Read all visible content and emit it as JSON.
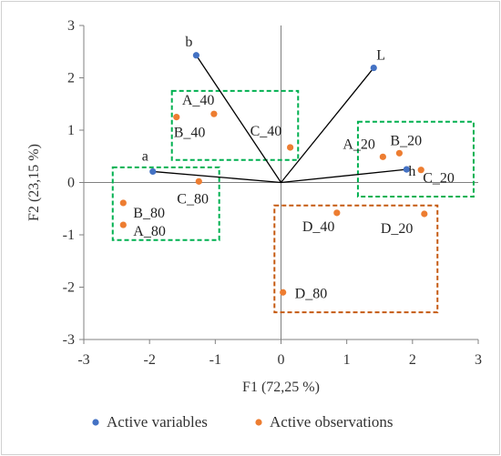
{
  "chart_data": {
    "type": "scatter",
    "title": "",
    "xlabel": "F1 (72,25 %)",
    "ylabel": "F2 (23,15 %)",
    "xlim": [
      -3,
      3
    ],
    "ylim": [
      -3,
      3
    ],
    "xticks": [
      -3,
      -2,
      -1,
      0,
      1,
      2,
      3
    ],
    "yticks": [
      -3,
      -2,
      -1,
      0,
      1,
      2,
      3
    ],
    "grid": false,
    "legend_position": "bottom",
    "series": [
      {
        "name": "Active variables",
        "color": "#4472C4",
        "points": [
          {
            "label": "b",
            "x": -1.29,
            "y": 2.43
          },
          {
            "label": "L",
            "x": 1.41,
            "y": 2.19
          },
          {
            "label": "a",
            "x": -1.95,
            "y": 0.21
          },
          {
            "label": "h",
            "x": 1.91,
            "y": 0.25
          }
        ]
      },
      {
        "name": "Active observations",
        "color": "#ED7D31",
        "points": [
          {
            "label": "A_40",
            "x": -1.02,
            "y": 1.31
          },
          {
            "label": "B_40",
            "x": -1.59,
            "y": 1.25
          },
          {
            "label": "C_40",
            "x": 0.14,
            "y": 0.67
          },
          {
            "label": "A_20",
            "x": 1.55,
            "y": 0.49
          },
          {
            "label": "B_20",
            "x": 1.8,
            "y": 0.56
          },
          {
            "label": "C_20",
            "x": 2.13,
            "y": 0.24
          },
          {
            "label": "C_80",
            "x": -1.25,
            "y": 0.02
          },
          {
            "label": "B_80",
            "x": -2.4,
            "y": -0.39
          },
          {
            "label": "A_80",
            "x": -2.4,
            "y": -0.81
          },
          {
            "label": "D_40",
            "x": 0.85,
            "y": -0.58
          },
          {
            "label": "D_20",
            "x": 2.18,
            "y": -0.6
          },
          {
            "label": "D_80",
            "x": 0.03,
            "y": -2.1
          }
        ]
      }
    ],
    "groups": [
      {
        "members": [
          "A_40",
          "B_40",
          "C_40"
        ],
        "x": [
          -1.66,
          0.26
        ],
        "y": [
          0.43,
          1.75
        ],
        "color": "#00B050"
      },
      {
        "members": [
          "A_20",
          "B_20",
          "C_20"
        ],
        "x": [
          1.17,
          2.93
        ],
        "y": [
          -0.27,
          1.16
        ],
        "color": "#00B050"
      },
      {
        "members": [
          "A_80",
          "B_80",
          "C_80"
        ],
        "x": [
          -2.56,
          -0.94
        ],
        "y": [
          -1.1,
          0.29
        ],
        "color": "#00B050"
      },
      {
        "members": [
          "D_40",
          "D_20",
          "D_80"
        ],
        "x": [
          -0.1,
          2.38
        ],
        "y": [
          -2.48,
          -0.44
        ],
        "color": "#C55A11"
      }
    ]
  }
}
